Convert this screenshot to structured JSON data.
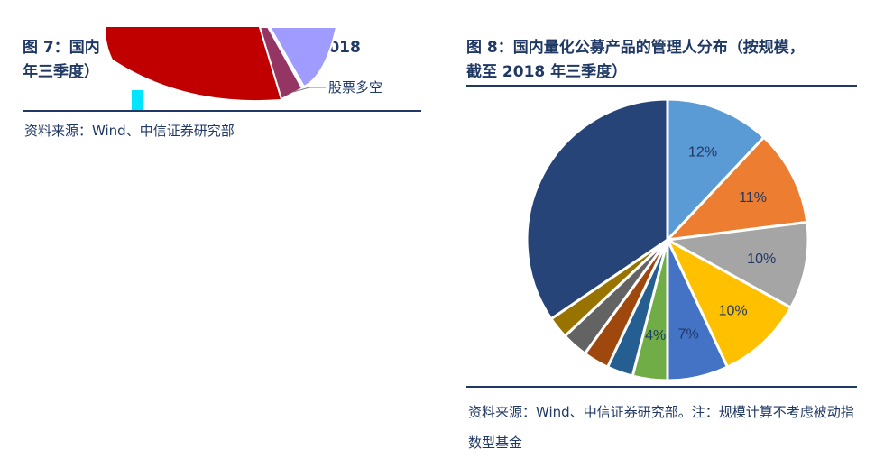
{
  "figure7": {
    "title_line1": "图 7：国内",
    "title_line1b": "截至 2018",
    "title_line2": "年三季度）",
    "source": "资料来源：Wind、中信证券研究部",
    "annotation": "股票多空",
    "colors": {
      "red": "#c00000",
      "purple": "#953563",
      "lavender": "#a09cff"
    }
  },
  "figure8": {
    "title_line1": "图 8：国内量化公募产品的管理人分布（按规模，",
    "title_line2": "截至 2018 年三季度）",
    "source": "资料来源：Wind、中信证券研究部。注：规模计算不考虑被动指数型基金"
  },
  "chart_data": [
    {
      "type": "pie",
      "title": "",
      "partial": true,
      "slices": [
        {
          "label": "",
          "color": "#c00000"
        },
        {
          "label": "",
          "color": "#953563"
        },
        {
          "label": "股票多空",
          "color": "#a09cff"
        }
      ]
    },
    {
      "type": "pie",
      "title": "国内量化公募产品的管理人分布（按规模，截至 2018 年三季度）",
      "start_angle_deg": 0,
      "direction": "clockwise",
      "slices": [
        {
          "label": "12%",
          "value": 12,
          "color": "#5b9bd5"
        },
        {
          "label": "11%",
          "value": 11,
          "color": "#ed7d31"
        },
        {
          "label": "10%",
          "value": 10,
          "color": "#a5a5a5"
        },
        {
          "label": "10%",
          "value": 10,
          "color": "#ffc000"
        },
        {
          "label": "7%",
          "value": 7,
          "color": "#4472c4"
        },
        {
          "label": "4%",
          "value": 4,
          "color": "#70ad47"
        },
        {
          "label": "",
          "value": 3,
          "color": "#255e91"
        },
        {
          "label": "",
          "value": 3,
          "color": "#9e480e"
        },
        {
          "label": "",
          "value": 3,
          "color": "#636363"
        },
        {
          "label": "",
          "value": 2.5,
          "color": "#997300"
        },
        {
          "label": "",
          "value": 34.5,
          "color": "#264478"
        }
      ]
    }
  ]
}
